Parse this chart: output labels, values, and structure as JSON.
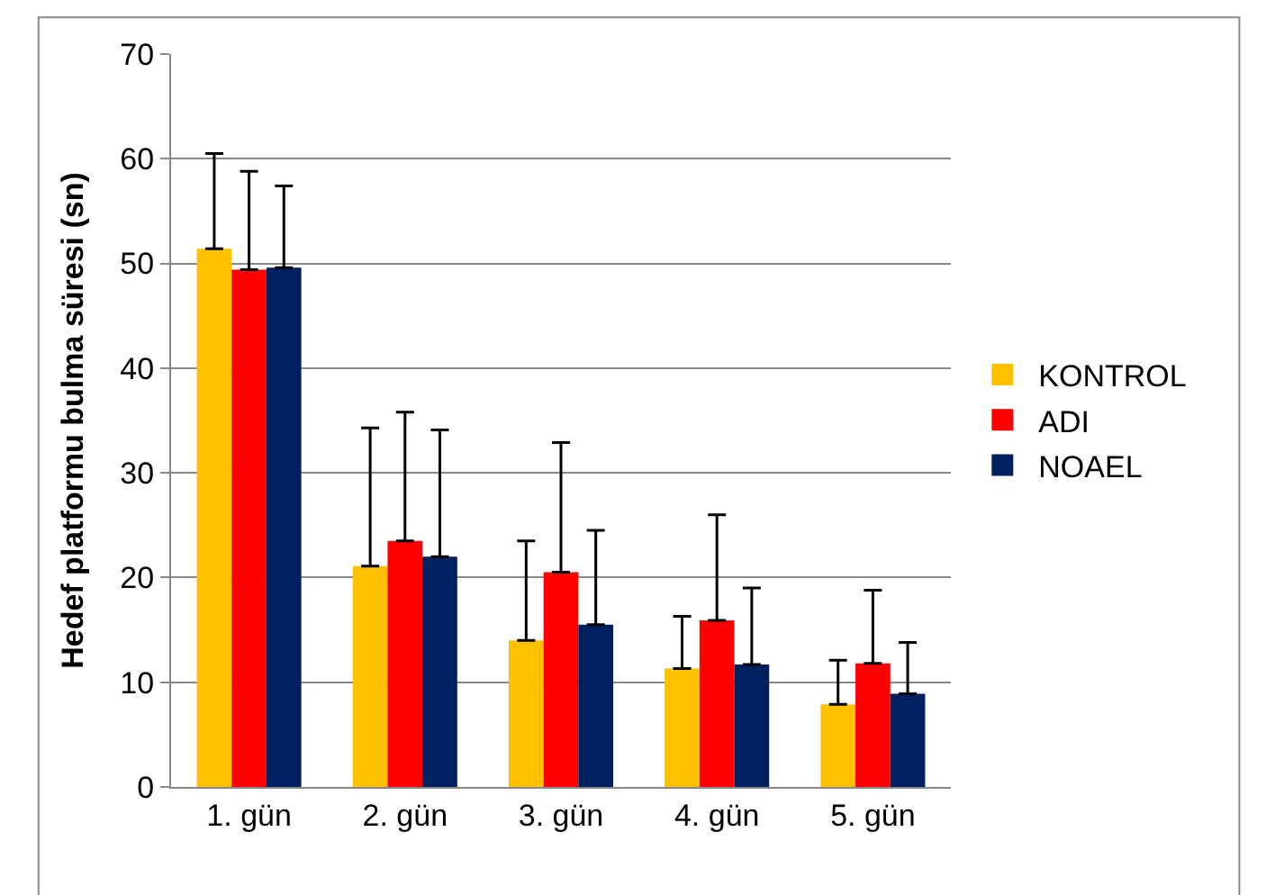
{
  "chart_data": {
    "type": "bar",
    "ylabel": "Hedef platformu bulma süresi (sn)",
    "categories": [
      "1. gün",
      "2. gün",
      "3. gün",
      "4. gün",
      "5. gün"
    ],
    "series": [
      {
        "name": "KONTROL",
        "color": "#ffc000",
        "values": [
          51.4,
          21.1,
          14.0,
          11.3,
          7.9
        ],
        "errors": [
          [
            51.4,
            60.5
          ],
          [
            21.1,
            34.3
          ],
          [
            14.0,
            23.5
          ],
          [
            11.3,
            16.3
          ],
          [
            7.9,
            12.1
          ]
        ]
      },
      {
        "name": "ADI",
        "color": "#ff0000",
        "values": [
          49.4,
          23.5,
          20.5,
          15.9,
          11.8
        ],
        "errors": [
          [
            49.4,
            58.8
          ],
          [
            23.5,
            35.8
          ],
          [
            20.5,
            32.9
          ],
          [
            15.9,
            26.0
          ],
          [
            11.8,
            18.8
          ]
        ]
      },
      {
        "name": "NOAEL",
        "color": "#002060",
        "values": [
          49.6,
          22.0,
          15.5,
          11.7,
          8.9
        ],
        "errors": [
          [
            49.6,
            57.4
          ],
          [
            22.0,
            34.1
          ],
          [
            15.5,
            24.5
          ],
          [
            11.7,
            19.0
          ],
          [
            8.9,
            13.8
          ]
        ]
      }
    ],
    "ylim": [
      0,
      70
    ],
    "yticks": [
      0,
      10,
      20,
      30,
      40,
      50,
      60,
      70
    ],
    "grid": "y",
    "legend": "right"
  }
}
